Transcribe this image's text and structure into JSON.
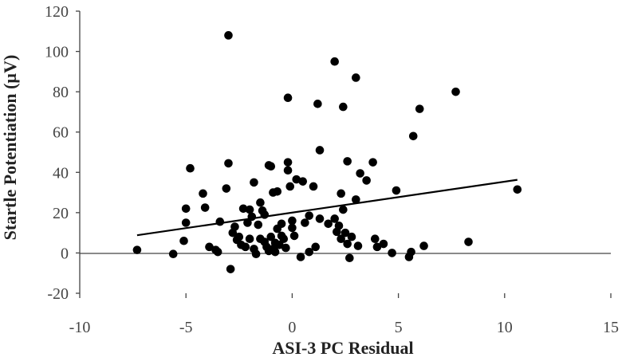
{
  "chart_data": {
    "type": "scatter",
    "title": "",
    "xlabel": "ASI-3 PC Residual",
    "ylabel": "Startle Potentiation (µV)",
    "xlim": [
      -10,
      15
    ],
    "ylim": [
      -20,
      120
    ],
    "x_ticks": [
      -10,
      -5,
      0,
      5,
      10,
      15
    ],
    "y_ticks": [
      -20,
      0,
      20,
      40,
      60,
      80,
      100,
      120
    ],
    "grid": false,
    "legend": "none",
    "marker_color": "#000000",
    "trendline": {
      "type": "linear",
      "x": [
        -7.3,
        10.6
      ],
      "y": [
        8.8,
        36.3
      ]
    },
    "points": [
      {
        "x": -7.3,
        "y": 1.5
      },
      {
        "x": -5.6,
        "y": -0.5
      },
      {
        "x": -5.1,
        "y": 6.0
      },
      {
        "x": -5.0,
        "y": 15.0
      },
      {
        "x": -5.0,
        "y": 22.0
      },
      {
        "x": -4.8,
        "y": 42.0
      },
      {
        "x": -4.2,
        "y": 29.5
      },
      {
        "x": -4.1,
        "y": 22.5
      },
      {
        "x": -3.9,
        "y": 3.0
      },
      {
        "x": -3.6,
        "y": 1.5
      },
      {
        "x": -3.5,
        "y": 0.5
      },
      {
        "x": -3.4,
        "y": 15.5
      },
      {
        "x": -3.1,
        "y": 32.0
      },
      {
        "x": -3.0,
        "y": 108.0
      },
      {
        "x": -3.0,
        "y": 44.5
      },
      {
        "x": -2.9,
        "y": -8.0
      },
      {
        "x": -2.8,
        "y": 10.0
      },
      {
        "x": -2.7,
        "y": 13.0
      },
      {
        "x": -2.6,
        "y": 6.5
      },
      {
        "x": -2.5,
        "y": 8.0
      },
      {
        "x": -2.4,
        "y": 4.0
      },
      {
        "x": -2.3,
        "y": 22.0
      },
      {
        "x": -2.2,
        "y": 3.0
      },
      {
        "x": -2.1,
        "y": 15.0
      },
      {
        "x": -2.0,
        "y": 21.5
      },
      {
        "x": -2.0,
        "y": 7.0
      },
      {
        "x": -1.9,
        "y": 18.0
      },
      {
        "x": -1.8,
        "y": 35.0
      },
      {
        "x": -1.8,
        "y": 2.0
      },
      {
        "x": -1.7,
        "y": -0.5
      },
      {
        "x": -1.6,
        "y": 14.0
      },
      {
        "x": -1.5,
        "y": 25.0
      },
      {
        "x": -1.5,
        "y": 7.0
      },
      {
        "x": -1.4,
        "y": 21.0
      },
      {
        "x": -1.3,
        "y": 19.0
      },
      {
        "x": -1.3,
        "y": 5.5
      },
      {
        "x": -1.2,
        "y": 3.0
      },
      {
        "x": -1.1,
        "y": 43.5
      },
      {
        "x": -1.1,
        "y": 1.0
      },
      {
        "x": -1.0,
        "y": 43.0
      },
      {
        "x": -1.0,
        "y": 8.0
      },
      {
        "x": -0.9,
        "y": 2.0
      },
      {
        "x": -0.9,
        "y": 30.0
      },
      {
        "x": -0.8,
        "y": 5.0
      },
      {
        "x": -0.8,
        "y": 0.5
      },
      {
        "x": -0.7,
        "y": 12.0
      },
      {
        "x": -0.7,
        "y": 30.5
      },
      {
        "x": -0.6,
        "y": 4.0
      },
      {
        "x": -0.5,
        "y": 14.5
      },
      {
        "x": -0.5,
        "y": 8.5
      },
      {
        "x": -0.4,
        "y": 7.0
      },
      {
        "x": -0.3,
        "y": 2.5
      },
      {
        "x": -0.2,
        "y": 77.0
      },
      {
        "x": -0.2,
        "y": 45.0
      },
      {
        "x": -0.2,
        "y": 41.0
      },
      {
        "x": -0.1,
        "y": 33.0
      },
      {
        "x": 0.0,
        "y": 16.0
      },
      {
        "x": 0.0,
        "y": 12.5
      },
      {
        "x": 0.1,
        "y": 8.5
      },
      {
        "x": 0.2,
        "y": 36.5
      },
      {
        "x": 0.4,
        "y": -2.0
      },
      {
        "x": 0.5,
        "y": 35.5
      },
      {
        "x": 0.6,
        "y": 15.0
      },
      {
        "x": 0.8,
        "y": 18.5
      },
      {
        "x": 0.8,
        "y": 0.5
      },
      {
        "x": 1.0,
        "y": 33.0
      },
      {
        "x": 1.1,
        "y": 3.0
      },
      {
        "x": 1.2,
        "y": 74.0
      },
      {
        "x": 1.3,
        "y": 51.0
      },
      {
        "x": 1.3,
        "y": 17.0
      },
      {
        "x": 1.7,
        "y": 14.5
      },
      {
        "x": 2.0,
        "y": 95.0
      },
      {
        "x": 2.0,
        "y": 17.0
      },
      {
        "x": 2.1,
        "y": 10.5
      },
      {
        "x": 2.2,
        "y": 13.5
      },
      {
        "x": 2.3,
        "y": 7.0
      },
      {
        "x": 2.3,
        "y": 29.5
      },
      {
        "x": 2.4,
        "y": 72.5
      },
      {
        "x": 2.4,
        "y": 21.5
      },
      {
        "x": 2.5,
        "y": 10.0
      },
      {
        "x": 2.6,
        "y": 45.5
      },
      {
        "x": 2.6,
        "y": 4.5
      },
      {
        "x": 2.7,
        "y": -2.5
      },
      {
        "x": 2.8,
        "y": 8.0
      },
      {
        "x": 3.0,
        "y": 87.0
      },
      {
        "x": 3.0,
        "y": 26.5
      },
      {
        "x": 3.1,
        "y": 3.5
      },
      {
        "x": 3.2,
        "y": 39.5
      },
      {
        "x": 3.5,
        "y": 36.0
      },
      {
        "x": 3.8,
        "y": 45.0
      },
      {
        "x": 3.9,
        "y": 7.0
      },
      {
        "x": 4.0,
        "y": 3.0
      },
      {
        "x": 4.3,
        "y": 4.5
      },
      {
        "x": 4.7,
        "y": 0.0
      },
      {
        "x": 4.9,
        "y": 31.0
      },
      {
        "x": 5.5,
        "y": -2.0
      },
      {
        "x": 5.6,
        "y": 0.5
      },
      {
        "x": 5.7,
        "y": 58.0
      },
      {
        "x": 6.0,
        "y": 71.5
      },
      {
        "x": 6.2,
        "y": 3.5
      },
      {
        "x": 7.7,
        "y": 80.0
      },
      {
        "x": 8.3,
        "y": 5.5
      },
      {
        "x": 10.6,
        "y": 31.5
      }
    ]
  }
}
